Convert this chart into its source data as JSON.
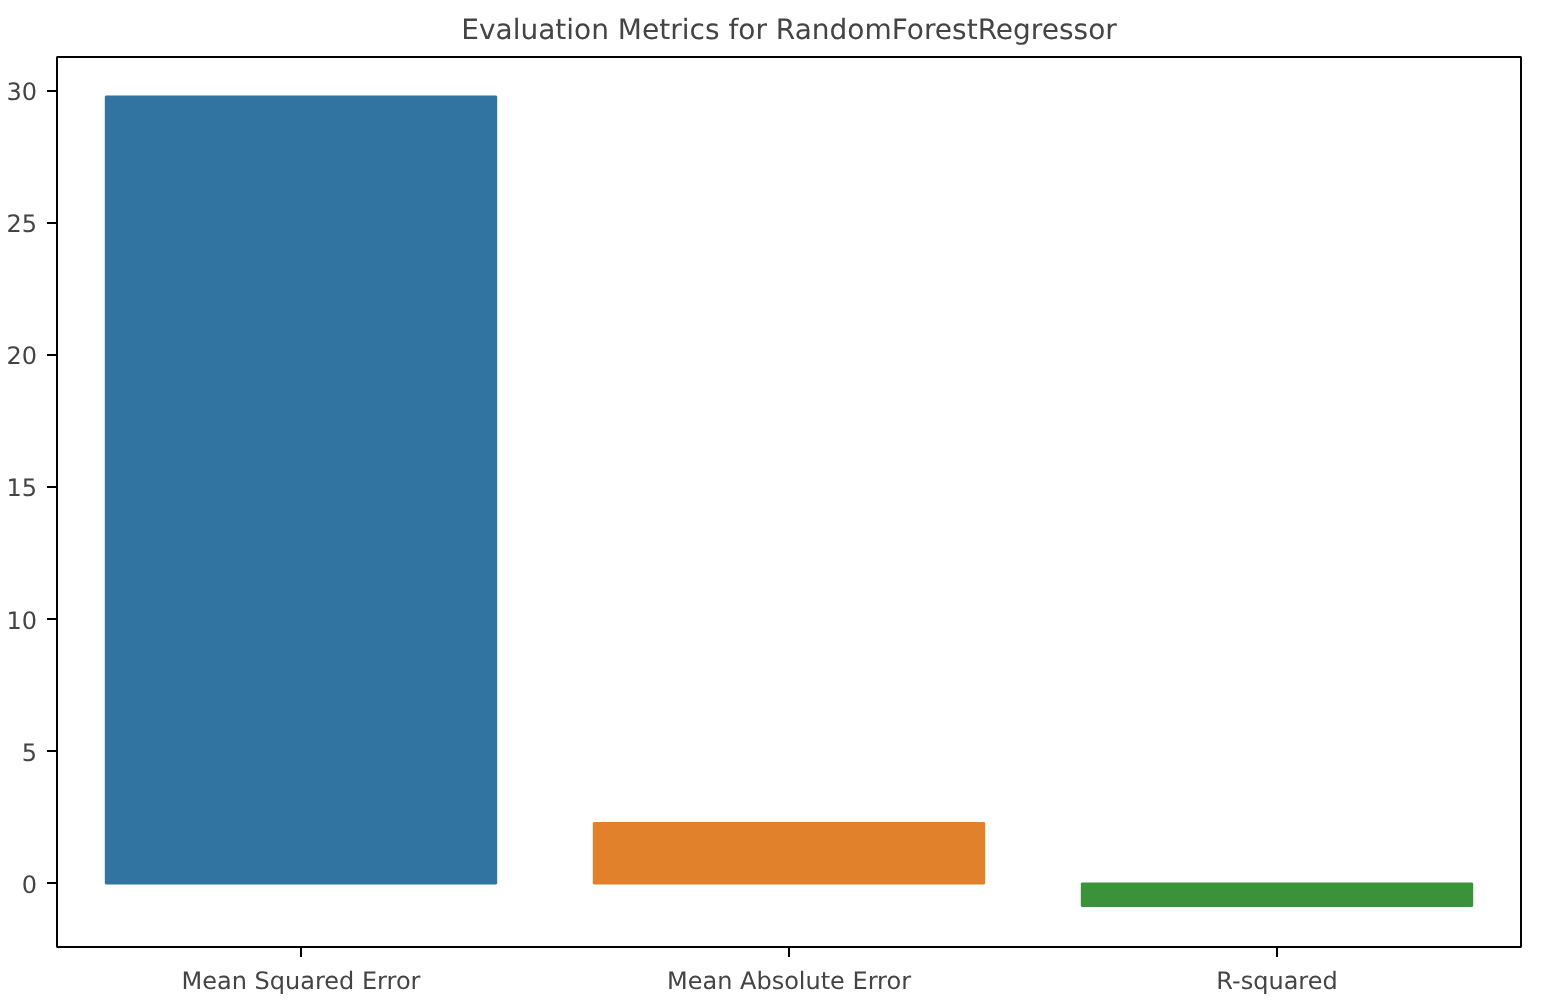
{
  "chart_data": {
    "type": "bar",
    "title": "Evaluation Metrics for RandomForestRegressor",
    "categories": [
      "Mean Squared Error",
      "Mean Absolute Error",
      "R-squared"
    ],
    "values": [
      29.8,
      2.3,
      -0.85
    ],
    "colors": [
      "#3274a1",
      "#e1812c",
      "#3a923a"
    ],
    "ylim": [
      -2.4,
      31.3
    ],
    "yticks": [
      0,
      5,
      10,
      15,
      20,
      25,
      30
    ],
    "grid": false
  }
}
